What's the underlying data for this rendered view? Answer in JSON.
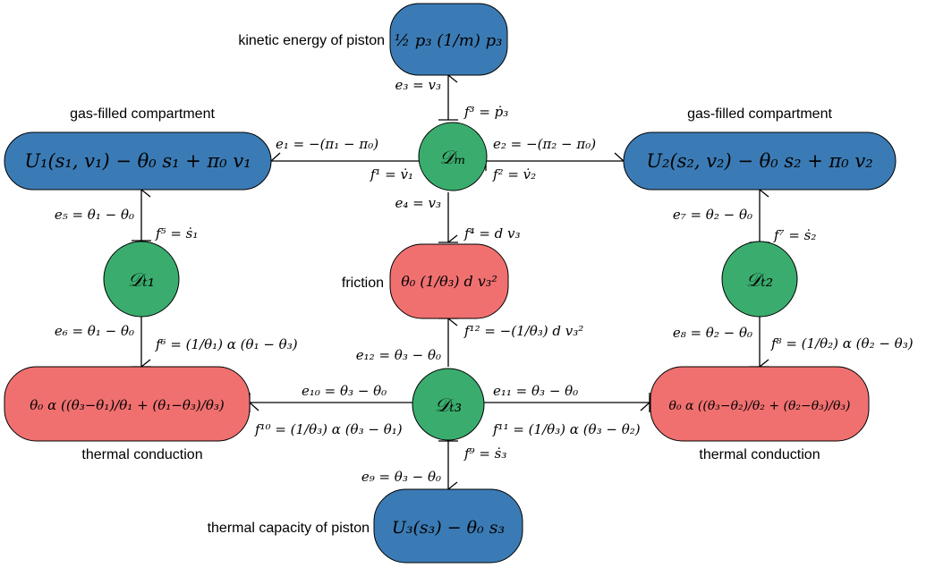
{
  "colors": {
    "storage": "#3b7bb5",
    "resistive": "#f07070",
    "dissipation": "#3aad6e"
  },
  "nodes": {
    "kinetic": {
      "formula": "½ p₃ (1/m) p₃",
      "caption": "kinetic energy of piston"
    },
    "gas_left": {
      "formula": "U₁(s₁, v₁) − θ₀ s₁ + π₀ v₁",
      "caption": "gas-filled compartment"
    },
    "gas_right": {
      "formula": "U₂(s₂, v₂) − θ₀ s₂ + π₀ v₂",
      "caption": "gas-filled compartment"
    },
    "Dm": {
      "formula": "𝒟ₘ"
    },
    "Dt1": {
      "formula": "𝒟ₜ₁"
    },
    "Dt2": {
      "formula": "𝒟ₜ₂"
    },
    "Dt3": {
      "formula": "𝒟ₜ₃"
    },
    "friction": {
      "formula": "θ₀ (1/θ₃) d v₃²",
      "caption": "friction"
    },
    "cond_left": {
      "formula": "θ₀ α ((θ₃−θ₁)/θ₁ + (θ₁−θ₃)/θ₃)",
      "caption": "thermal conduction"
    },
    "cond_right": {
      "formula": "θ₀ α ((θ₃−θ₂)/θ₂ + (θ₂−θ₃)/θ₃)",
      "caption": "thermal conduction"
    },
    "thermal": {
      "formula": "U₃(s₃) − θ₀ s₃",
      "caption": "thermal capacity of piston"
    }
  },
  "labels": {
    "e3": "e₃ = v₃",
    "f3": "f³ = ṗ₃",
    "e1": "e₁ = −(π₁ − π₀)",
    "f1": "f¹ = v̇₁",
    "e2": "e₂ = −(π₂ − π₀)",
    "f2": "f² = v̇₂",
    "e4": "e₄ = v₃",
    "f4": "f⁴ = d v₃",
    "e5": "e₅ = θ₁ − θ₀",
    "f5": "f⁵ = ṡ₁",
    "e7": "e₇ = θ₂ − θ₀",
    "f7": "f⁷ = ṡ₂",
    "e6": "e₆ = θ₁ − θ₀",
    "f6": "f⁶ = (1/θ₁) α (θ₁ − θ₃)",
    "e8": "e₈ = θ₂ − θ₀",
    "f8": "f⁸ = (1/θ₂) α (θ₂ − θ₃)",
    "e12": "e₁₂ = θ₃ − θ₀",
    "f12": "f¹² = −(1/θ₃) d v₃²",
    "e10": "e₁₀ = θ₃ − θ₀",
    "f10": "f¹⁰ = (1/θ₃) α (θ₃ − θ₁)",
    "e11": "e₁₁ = θ₃ − θ₀",
    "f11": "f¹¹ = (1/θ₃) α (θ₃ − θ₂)",
    "e9": "e₉ = θ₃ − θ₀",
    "f9": "f⁹ = ṡ₃"
  }
}
